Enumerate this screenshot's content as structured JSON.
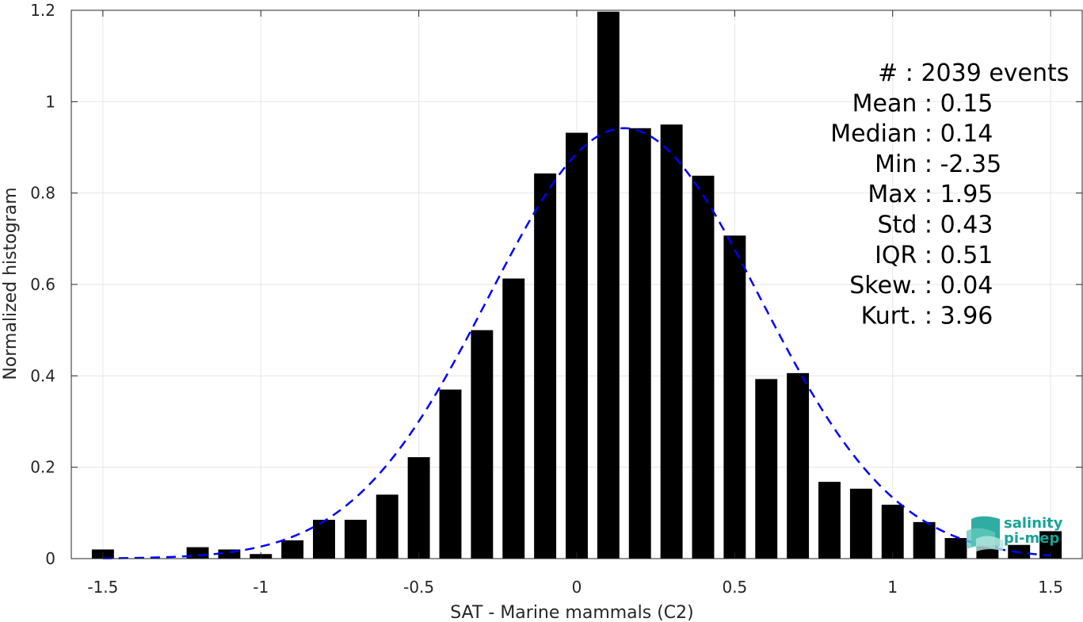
{
  "chart_data": {
    "type": "bar",
    "xlabel": "SAT - Marine mammals (C2)",
    "ylabel": "Normalized histogram",
    "xlim": [
      -1.6,
      1.6
    ],
    "ylim": [
      0,
      1.2
    ],
    "xticks": [
      -1.5,
      -1,
      -0.5,
      0,
      0.5,
      1,
      1.5
    ],
    "xtick_labels": [
      "-1.5",
      "-1",
      "-0.5",
      "0",
      "0.5",
      "1",
      "1.5"
    ],
    "yticks": [
      0,
      0.2,
      0.4,
      0.6,
      0.8,
      1,
      1.2
    ],
    "ytick_labels": [
      "0",
      "0.2",
      "0.4",
      "0.6",
      "0.8",
      "1",
      "1.2"
    ],
    "grid": true,
    "bar_width": 0.07,
    "bars": {
      "x": [
        -1.5,
        -1.2,
        -1.1,
        -1.0,
        -0.9,
        -0.8,
        -0.7,
        -0.6,
        -0.5,
        -0.4,
        -0.3,
        -0.2,
        -0.1,
        0.0,
        0.1,
        0.2,
        0.3,
        0.4,
        0.5,
        0.6,
        0.7,
        0.8,
        0.9,
        1.0,
        1.1,
        1.2,
        1.3,
        1.4,
        1.5
      ],
      "values": [
        0.02,
        0.025,
        0.02,
        0.01,
        0.04,
        0.085,
        0.085,
        0.14,
        0.222,
        0.37,
        0.5,
        0.613,
        0.843,
        0.932,
        1.197,
        0.942,
        0.95,
        0.838,
        0.707,
        0.393,
        0.406,
        0.168,
        0.153,
        0.118,
        0.08,
        0.045,
        0.03,
        0.03,
        0.06
      ],
      "color": "#000000"
    },
    "fit_curve": {
      "style": "dashed",
      "color": "#0000ff",
      "mean": 0.15,
      "std": 0.43,
      "peak": 0.942,
      "x_range": [
        -1.5,
        1.5
      ]
    },
    "stats": [
      {
        "label": "#  ",
        "value": "2039 events"
      },
      {
        "label": "Mean",
        "value": "0.15"
      },
      {
        "label": "Median",
        "value": "0.14"
      },
      {
        "label": "Min",
        "value": "-2.35"
      },
      {
        "label": "Max",
        "value": "1.95"
      },
      {
        "label": "Std",
        "value": "0.43"
      },
      {
        "label": "IQR",
        "value": "0.51"
      },
      {
        "label": "Skew.",
        "value": "0.04"
      },
      {
        "label": "Kurt.",
        "value": "3.96"
      }
    ]
  },
  "logo": {
    "line1": "salinity",
    "line2": "pi-mep",
    "color": "#1aa398"
  }
}
